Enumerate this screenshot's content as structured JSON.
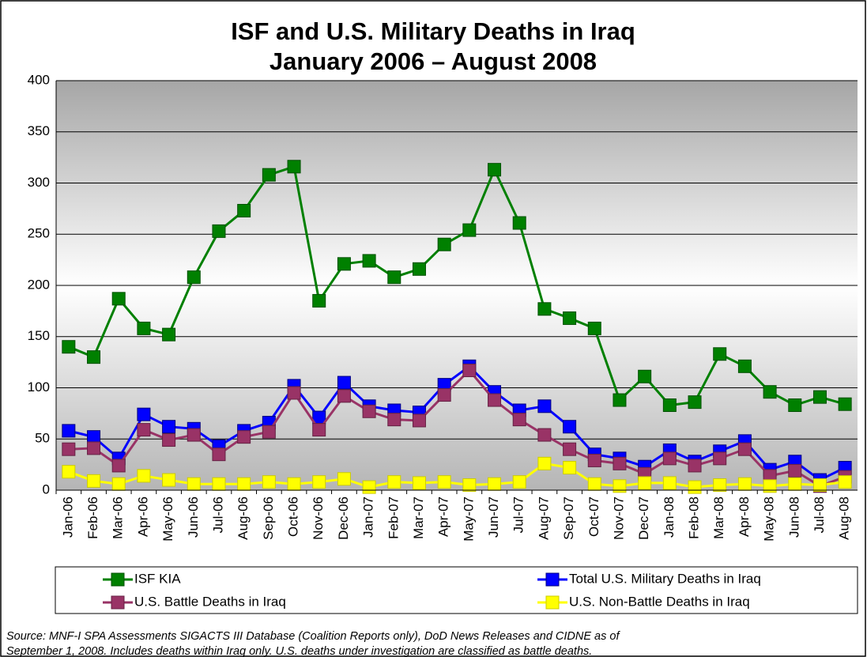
{
  "chart_data": {
    "type": "line",
    "title": "ISF and U.S. Military Deaths in Iraq",
    "subtitle": "January 2006 – August 2008",
    "categories": [
      "Jan-06",
      "Feb-06",
      "Mar-06",
      "Apr-06",
      "May-06",
      "Jun-06",
      "Jul-06",
      "Aug-06",
      "Sep-06",
      "Oct-06",
      "Nov-06",
      "Dec-06",
      "Jan-07",
      "Feb-07",
      "Mar-07",
      "Apr-07",
      "May-07",
      "Jun-07",
      "Jul-07",
      "Aug-07",
      "Sep-07",
      "Oct-07",
      "Nov-07",
      "Dec-07",
      "Jan-08",
      "Feb-08",
      "Mar-08",
      "Apr-08",
      "May-08",
      "Jun-08",
      "Jul-08",
      "Aug-08"
    ],
    "series": [
      {
        "name": "ISF KIA",
        "color": "#008000",
        "values": [
          140,
          130,
          187,
          158,
          152,
          208,
          253,
          273,
          308,
          316,
          185,
          221,
          224,
          208,
          216,
          240,
          254,
          313,
          261,
          177,
          168,
          158,
          88,
          111,
          83,
          86,
          133,
          121,
          96,
          83,
          91,
          84
        ]
      },
      {
        "name": "Total U.S. Military Deaths in Iraq",
        "color": "#0000ff",
        "values": [
          58,
          52,
          31,
          74,
          62,
          60,
          43,
          58,
          66,
          102,
          71,
          105,
          82,
          78,
          76,
          103,
          121,
          96,
          78,
          82,
          62,
          35,
          31,
          23,
          39,
          28,
          38,
          48,
          20,
          28,
          10,
          22
        ]
      },
      {
        "name": "U.S. Battle Deaths in Iraq",
        "color": "#993366",
        "values": [
          40,
          41,
          24,
          59,
          49,
          54,
          35,
          52,
          57,
          95,
          59,
          92,
          77,
          69,
          68,
          93,
          117,
          88,
          69,
          54,
          40,
          29,
          26,
          16,
          31,
          24,
          31,
          40,
          14,
          19,
          4,
          13
        ]
      },
      {
        "name": "U.S. Non-Battle Deaths in Iraq",
        "color": "#ffff00",
        "values": [
          18,
          9,
          6,
          14,
          10,
          6,
          6,
          6,
          8,
          6,
          8,
          11,
          3,
          8,
          7,
          8,
          5,
          6,
          8,
          26,
          22,
          6,
          4,
          7,
          7,
          3,
          5,
          6,
          4,
          6,
          5,
          8
        ]
      }
    ],
    "ylim": [
      0,
      400
    ],
    "yticks": [
      0,
      50,
      100,
      150,
      200,
      250,
      300,
      350,
      400
    ],
    "grid": true,
    "source": [
      "Source:  MNF-I SPA Assessments SIGACTS III Database (Coalition Reports only), DoD News Releases and CIDNE as of",
      "September 1, 2008.  Includes deaths within Iraq only.  U.S. deaths under investigation are classified as battle deaths."
    ]
  }
}
